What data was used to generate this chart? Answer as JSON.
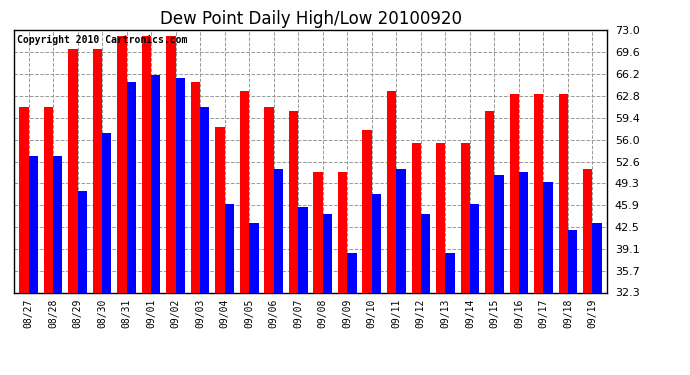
{
  "title": "Dew Point Daily High/Low 20100920",
  "copyright": "Copyright 2010 Cartronics.com",
  "dates": [
    "08/27",
    "08/28",
    "08/29",
    "08/30",
    "08/31",
    "09/01",
    "09/02",
    "09/03",
    "09/04",
    "09/05",
    "09/06",
    "09/07",
    "09/08",
    "09/09",
    "09/10",
    "09/11",
    "09/12",
    "09/13",
    "09/14",
    "09/15",
    "09/16",
    "09/17",
    "09/18",
    "09/19"
  ],
  "high": [
    61.0,
    61.0,
    70.0,
    70.0,
    72.0,
    72.0,
    72.0,
    65.0,
    58.0,
    63.5,
    61.0,
    60.5,
    51.0,
    51.0,
    57.5,
    63.5,
    55.5,
    55.5,
    55.5,
    60.5,
    63.0,
    63.0,
    63.0,
    51.5
  ],
  "low": [
    53.5,
    53.5,
    48.0,
    57.0,
    65.0,
    66.0,
    65.5,
    61.0,
    46.0,
    43.0,
    51.5,
    45.5,
    44.5,
    38.5,
    47.5,
    51.5,
    44.5,
    38.5,
    46.0,
    50.5,
    51.0,
    49.5,
    42.0,
    43.0
  ],
  "ymin": 32.3,
  "ymax": 73.0,
  "yticks": [
    32.3,
    35.7,
    39.1,
    42.5,
    45.9,
    49.3,
    52.6,
    56.0,
    59.4,
    62.8,
    66.2,
    69.6,
    73.0
  ],
  "bar_color_high": "#ff0000",
  "bar_color_low": "#0000ff",
  "bg_color": "#ffffff",
  "plot_bg_color": "#ffffff",
  "grid_color": "#999999",
  "title_fontsize": 12,
  "copyright_fontsize": 7
}
